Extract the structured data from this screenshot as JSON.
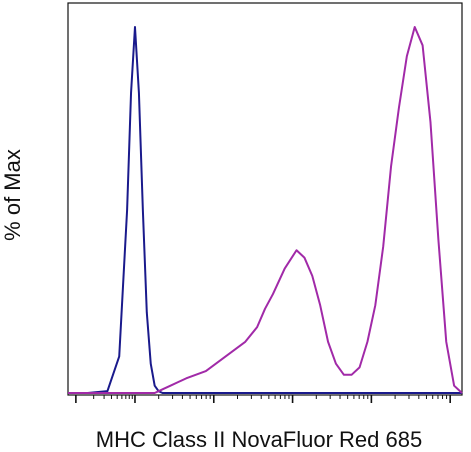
{
  "chart_data": {
    "type": "line",
    "title": "",
    "xlabel": "MHC Class II NovaFluor Red 685",
    "ylabel": "% of Max",
    "xscale": "log",
    "xlim": [
      0,
      1
    ],
    "ylim": [
      0,
      100
    ],
    "grid": false,
    "legend": "none",
    "x": [
      0.0,
      0.05,
      0.1,
      0.13,
      0.15,
      0.16,
      0.17,
      0.18,
      0.19,
      0.2,
      0.21,
      0.22,
      0.23,
      0.24,
      0.26,
      0.28,
      0.3,
      0.35,
      0.4,
      0.45,
      0.48,
      0.5,
      0.52,
      0.55,
      0.58,
      0.6,
      0.62,
      0.64,
      0.66,
      0.68,
      0.7,
      0.72,
      0.74,
      0.76,
      0.78,
      0.8,
      0.82,
      0.84,
      0.86,
      0.88,
      0.9,
      0.92,
      0.94,
      0.96,
      0.98,
      1.0
    ],
    "series": [
      {
        "color": "#1a1a8c",
        "values": [
          0,
          0,
          0.5,
          10,
          50,
          82,
          100,
          82,
          50,
          22,
          8,
          2,
          0.5,
          0,
          0,
          0,
          0,
          0,
          0,
          0,
          0,
          0,
          0,
          0,
          0,
          0,
          0,
          0,
          0,
          0,
          0,
          0,
          0,
          0,
          0,
          0,
          0,
          0,
          0,
          0,
          0,
          0,
          0,
          0,
          0,
          0
        ]
      },
      {
        "color": "#a12aa8",
        "values": [
          0,
          0,
          0,
          0,
          0,
          0,
          0,
          0,
          0,
          0,
          0,
          0,
          0.5,
          1,
          2,
          3,
          4,
          6,
          10,
          14,
          18,
          23,
          27,
          34,
          39,
          37,
          32,
          24,
          14,
          8,
          5,
          5,
          7,
          14,
          24,
          40,
          62,
          78,
          92,
          100,
          95,
          74,
          42,
          14,
          2,
          0
        ]
      }
    ]
  },
  "axis_icon": "log-tick-axis"
}
